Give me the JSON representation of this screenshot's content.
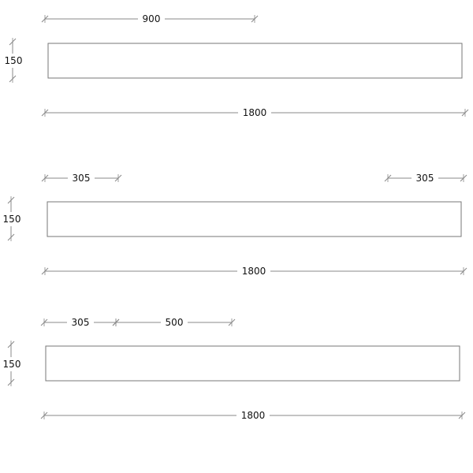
{
  "panels": [
    {
      "name": "panel-1",
      "width_label": "1800",
      "height_label": "150",
      "top_dims": [
        "900"
      ]
    },
    {
      "name": "panel-2",
      "width_label": "1800",
      "height_label": "150",
      "top_dims": [
        "305",
        "305"
      ]
    },
    {
      "name": "panel-3",
      "width_label": "1800",
      "height_label": "150",
      "top_dims": [
        "305",
        "500"
      ]
    }
  ],
  "colors": {
    "outline": "#777777",
    "dimension_line": "#888888",
    "text": "#111111"
  }
}
